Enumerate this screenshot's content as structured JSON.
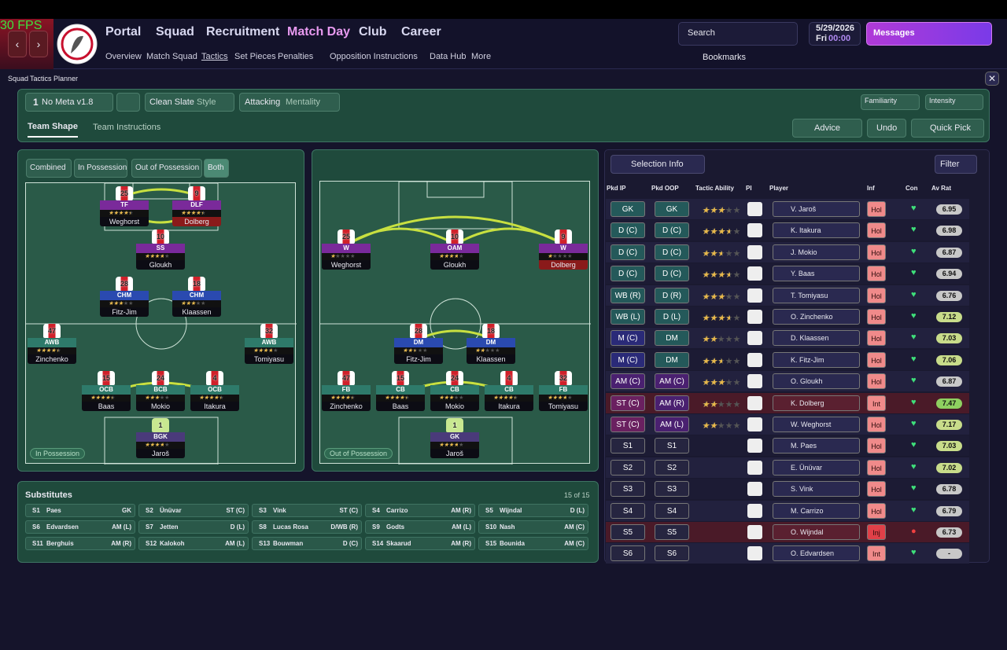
{
  "fps": "30 FPS",
  "nav": {
    "main": [
      "Portal",
      "Squad",
      "Recruitment",
      "Match Day",
      "Club",
      "Career"
    ],
    "sub": [
      "Overview",
      "Match Squad",
      "Tactics",
      "Set Pieces",
      "Penalties",
      "Opposition Instructions",
      "Data Hub",
      "More"
    ]
  },
  "header": {
    "search": "Search",
    "date": "5/29/2026",
    "day": "Fri",
    "time": "00:00",
    "messages": "Messages",
    "bookmarks": "Bookmarks"
  },
  "breadcrumb": [
    "Squad",
    "Tactics Planner"
  ],
  "toolbar": {
    "slot": "1",
    "tactic": "No Meta v1.8",
    "style": "Clean Slate",
    "style_label": "Style",
    "mentality": "Attacking",
    "mentality_label": "Mentality",
    "familiarity": "Familiarity",
    "intensity": "Intensity"
  },
  "tabs": [
    "Team Shape",
    "Team Instructions"
  ],
  "actions": [
    "Advice",
    "Undo",
    "Quick Pick"
  ],
  "views": [
    "Combined",
    "In Possession",
    "Out of Possession",
    "Both"
  ],
  "pitches": [
    {
      "label": "In Possession",
      "players": [
        {
          "number": 25,
          "role": "TF",
          "name": "Weghorst",
          "stars": 3.5
        },
        {
          "number": 9,
          "role": "DLF",
          "name": "Dolberg",
          "stars": 3.5
        },
        {
          "number": 10,
          "role": "SS",
          "name": "Gloukh",
          "stars": 3
        },
        {
          "number": 28,
          "role": "CHM",
          "name": "Fitz-Jim",
          "stars": 2.5
        },
        {
          "number": 18,
          "role": "CHM",
          "name": "Klaassen",
          "stars": 2.5
        },
        {
          "number": 47,
          "role": "AWB",
          "name": "Zinchenko",
          "stars": 3.5
        },
        {
          "number": 32,
          "role": "AWB",
          "name": "Tomiyasu",
          "stars": 3
        },
        {
          "number": 15,
          "role": "OCB",
          "name": "Baas",
          "stars": 3.5
        },
        {
          "number": 24,
          "role": "BCB",
          "name": "Mokio",
          "stars": 2.5
        },
        {
          "number": 4,
          "role": "OCB",
          "name": "Itakura",
          "stars": 3.5
        },
        {
          "number": 1,
          "role": "BGK",
          "name": "Jaroš",
          "stars": 3
        }
      ]
    },
    {
      "label": "Out of Possession",
      "players": [
        {
          "number": 25,
          "role": "W",
          "name": "Weghorst",
          "stars": 1
        },
        {
          "number": 10,
          "role": "OAM",
          "name": "Gloukh",
          "stars": 3
        },
        {
          "number": 9,
          "role": "W",
          "name": "Dolberg",
          "stars": 1
        },
        {
          "number": 28,
          "role": "DM",
          "name": "Fitz-Jim",
          "stars": 2
        },
        {
          "number": 18,
          "role": "DM",
          "name": "Klaassen",
          "stars": 1.5
        },
        {
          "number": 47,
          "role": "FB",
          "name": "Zinchenko",
          "stars": 3.5
        },
        {
          "number": 15,
          "role": "CB",
          "name": "Baas",
          "stars": 3.5
        },
        {
          "number": 24,
          "role": "CB",
          "name": "Mokio",
          "stars": 2.5
        },
        {
          "number": 4,
          "role": "CB",
          "name": "Itakura",
          "stars": 3.5
        },
        {
          "number": 32,
          "role": "FB",
          "name": "Tomiyasu",
          "stars": 3
        },
        {
          "number": 1,
          "role": "GK",
          "name": "Jaroš",
          "stars": 3
        }
      ]
    }
  ],
  "substitutes": {
    "title": "Substitutes",
    "count": "15 of 15",
    "players": [
      {
        "slot": "S1",
        "name": "Paes",
        "position": "GK"
      },
      {
        "slot": "S2",
        "name": "Ünüvar",
        "position": "ST (C)"
      },
      {
        "slot": "S3",
        "name": "Vink",
        "position": "ST (C)"
      },
      {
        "slot": "S4",
        "name": "Carrizo",
        "position": "AM (R)"
      },
      {
        "slot": "S5",
        "name": "Wijndal",
        "position": "D (L)"
      },
      {
        "slot": "S6",
        "name": "Edvardsen",
        "position": "AM (L)"
      },
      {
        "slot": "S7",
        "name": "Jetten",
        "position": "D (L)"
      },
      {
        "slot": "S8",
        "name": "Lucas Rosa",
        "position": "D/WB (R)"
      },
      {
        "slot": "S9",
        "name": "Godts",
        "position": "AM (L)"
      },
      {
        "slot": "S10",
        "name": "Nash",
        "position": "AM (C)"
      },
      {
        "slot": "S11",
        "name": "Berghuis",
        "position": "AM (R)"
      },
      {
        "slot": "S12",
        "name": "Kalokoh",
        "position": "AM (L)"
      },
      {
        "slot": "S13",
        "name": "Bouwman",
        "position": "D (C)"
      },
      {
        "slot": "S14",
        "name": "Skaarud",
        "position": "AM (R)"
      },
      {
        "slot": "S15",
        "name": "Bounida",
        "position": "AM (C)"
      }
    ]
  },
  "selection": {
    "title": "Selection Info",
    "filter": "Filter",
    "headers": [
      "Pkd IP",
      "Pkd OOP",
      "Tactic Ability",
      "PI",
      "Player",
      "Inf",
      "Con",
      "Av Rat"
    ],
    "rows": [
      {
        "ip": "GK",
        "oop": "GK",
        "stars": 3,
        "player": "V. Jaroš",
        "inf": "Hol",
        "rating": 6.95
      },
      {
        "ip": "D (C)",
        "oop": "D (C)",
        "stars": 3.5,
        "player": "K. Itakura",
        "inf": "Hol",
        "rating": 6.98
      },
      {
        "ip": "D (C)",
        "oop": "D (C)",
        "stars": 2.5,
        "player": "J. Mokio",
        "inf": "Hol",
        "rating": 6.87
      },
      {
        "ip": "D (C)",
        "oop": "D (C)",
        "stars": 3.5,
        "player": "Y. Baas",
        "inf": "Hol",
        "rating": 6.94
      },
      {
        "ip": "WB (R)",
        "oop": "D (R)",
        "stars": 3,
        "player": "T. Tomiyasu",
        "inf": "Hol",
        "rating": 6.76
      },
      {
        "ip": "WB (L)",
        "oop": "D (L)",
        "stars": 3.5,
        "player": "O. Zinchenko",
        "inf": "Hol",
        "rating": 7.12
      },
      {
        "ip": "M (C)",
        "oop": "DM",
        "stars": 2,
        "player": "D. Klaassen",
        "inf": "Hol",
        "rating": 7.03
      },
      {
        "ip": "M (C)",
        "oop": "DM",
        "stars": 2.5,
        "player": "K. Fitz-Jim",
        "inf": "Hol",
        "rating": 7.06
      },
      {
        "ip": "AM (C)",
        "oop": "AM (C)",
        "stars": 3,
        "player": "O. Gloukh",
        "inf": "Hol",
        "rating": 6.87
      },
      {
        "ip": "ST (C)",
        "oop": "AM (R)",
        "stars": 2,
        "player": "K. Dolberg",
        "inf": "Int",
        "rating": 7.47
      },
      {
        "ip": "ST (C)",
        "oop": "AM (L)",
        "stars": 2,
        "player": "W. Weghorst",
        "inf": "Hol",
        "rating": 7.17
      },
      {
        "ip": "S1",
        "oop": "S1",
        "player": "M. Paes",
        "inf": "Hol",
        "rating": 7.03
      },
      {
        "ip": "S2",
        "oop": "S2",
        "player": "E. Ünüvar",
        "inf": "Hol",
        "rating": 7.02
      },
      {
        "ip": "S3",
        "oop": "S3",
        "player": "S. Vink",
        "inf": "Hol",
        "rating": 6.78
      },
      {
        "ip": "S4",
        "oop": "S4",
        "player": "M. Carrizo",
        "inf": "Hol",
        "rating": 6.79
      },
      {
        "ip": "S5",
        "oop": "S5",
        "player": "O. Wijndal",
        "inf": "Inj",
        "rating": 6.73
      },
      {
        "ip": "S6",
        "oop": "S6",
        "player": "O. Edvardsen",
        "inf": "Int",
        "rating": "-"
      }
    ]
  }
}
